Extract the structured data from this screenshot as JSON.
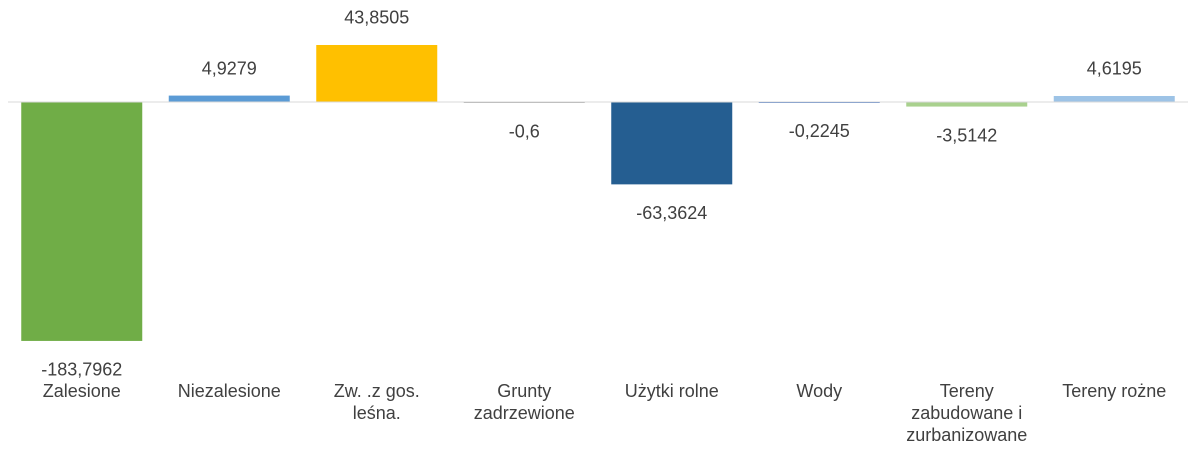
{
  "chart_data": {
    "type": "bar",
    "categories": [
      "Zalesione",
      "Niezalesione",
      "Zw. .z gos. leśna.",
      "Grunty zadrzewione",
      "Użytki rolne",
      "Wody",
      "Tereny zabudowane i zurbanizowane",
      "Tereny rożne"
    ],
    "values": [
      -183.7962,
      4.9279,
      43.8505,
      -0.6,
      -63.3624,
      -0.2245,
      -3.5142,
      4.6195
    ],
    "value_labels": [
      "-183,7962",
      "4,9279",
      "43,8505",
      "-0,6",
      "-63,3624",
      "-0,2245",
      "-3,5142",
      "4,6195"
    ],
    "colors": [
      "#70ad47",
      "#5b9bd5",
      "#ffc000",
      "#a5a5a5",
      "#255e91",
      "#4472c4",
      "#a9d18e",
      "#9dc3e6"
    ],
    "ylim": [
      -190,
      60
    ]
  }
}
